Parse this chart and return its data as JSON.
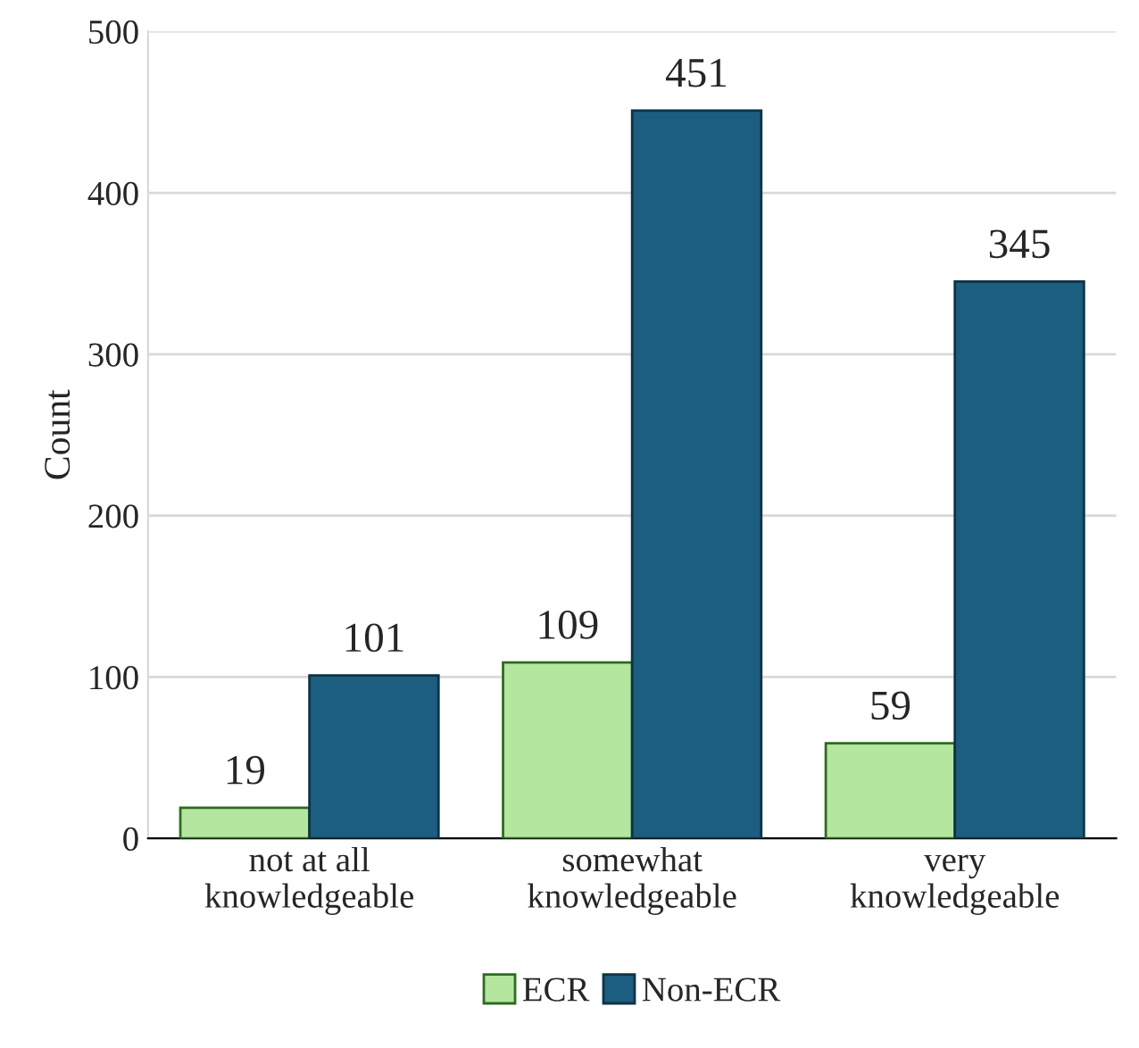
{
  "chart_data": {
    "type": "bar",
    "ylabel": "Count",
    "categories": [
      "not at all\nknowledgeable",
      "somewhat\nknowledgeable",
      "very\nknowledgeable"
    ],
    "series": [
      {
        "name": "ECR",
        "color": "#b4e6a0",
        "values": [
          19,
          109,
          59
        ]
      },
      {
        "name": "Non-ECR",
        "color": "#1b5e80",
        "values": [
          101,
          451,
          345
        ]
      }
    ],
    "ylim": [
      0,
      500
    ],
    "yticks": [
      0,
      100,
      200,
      300,
      400,
      500
    ],
    "grid": "y",
    "legend": "bottom",
    "data_labels": true
  }
}
